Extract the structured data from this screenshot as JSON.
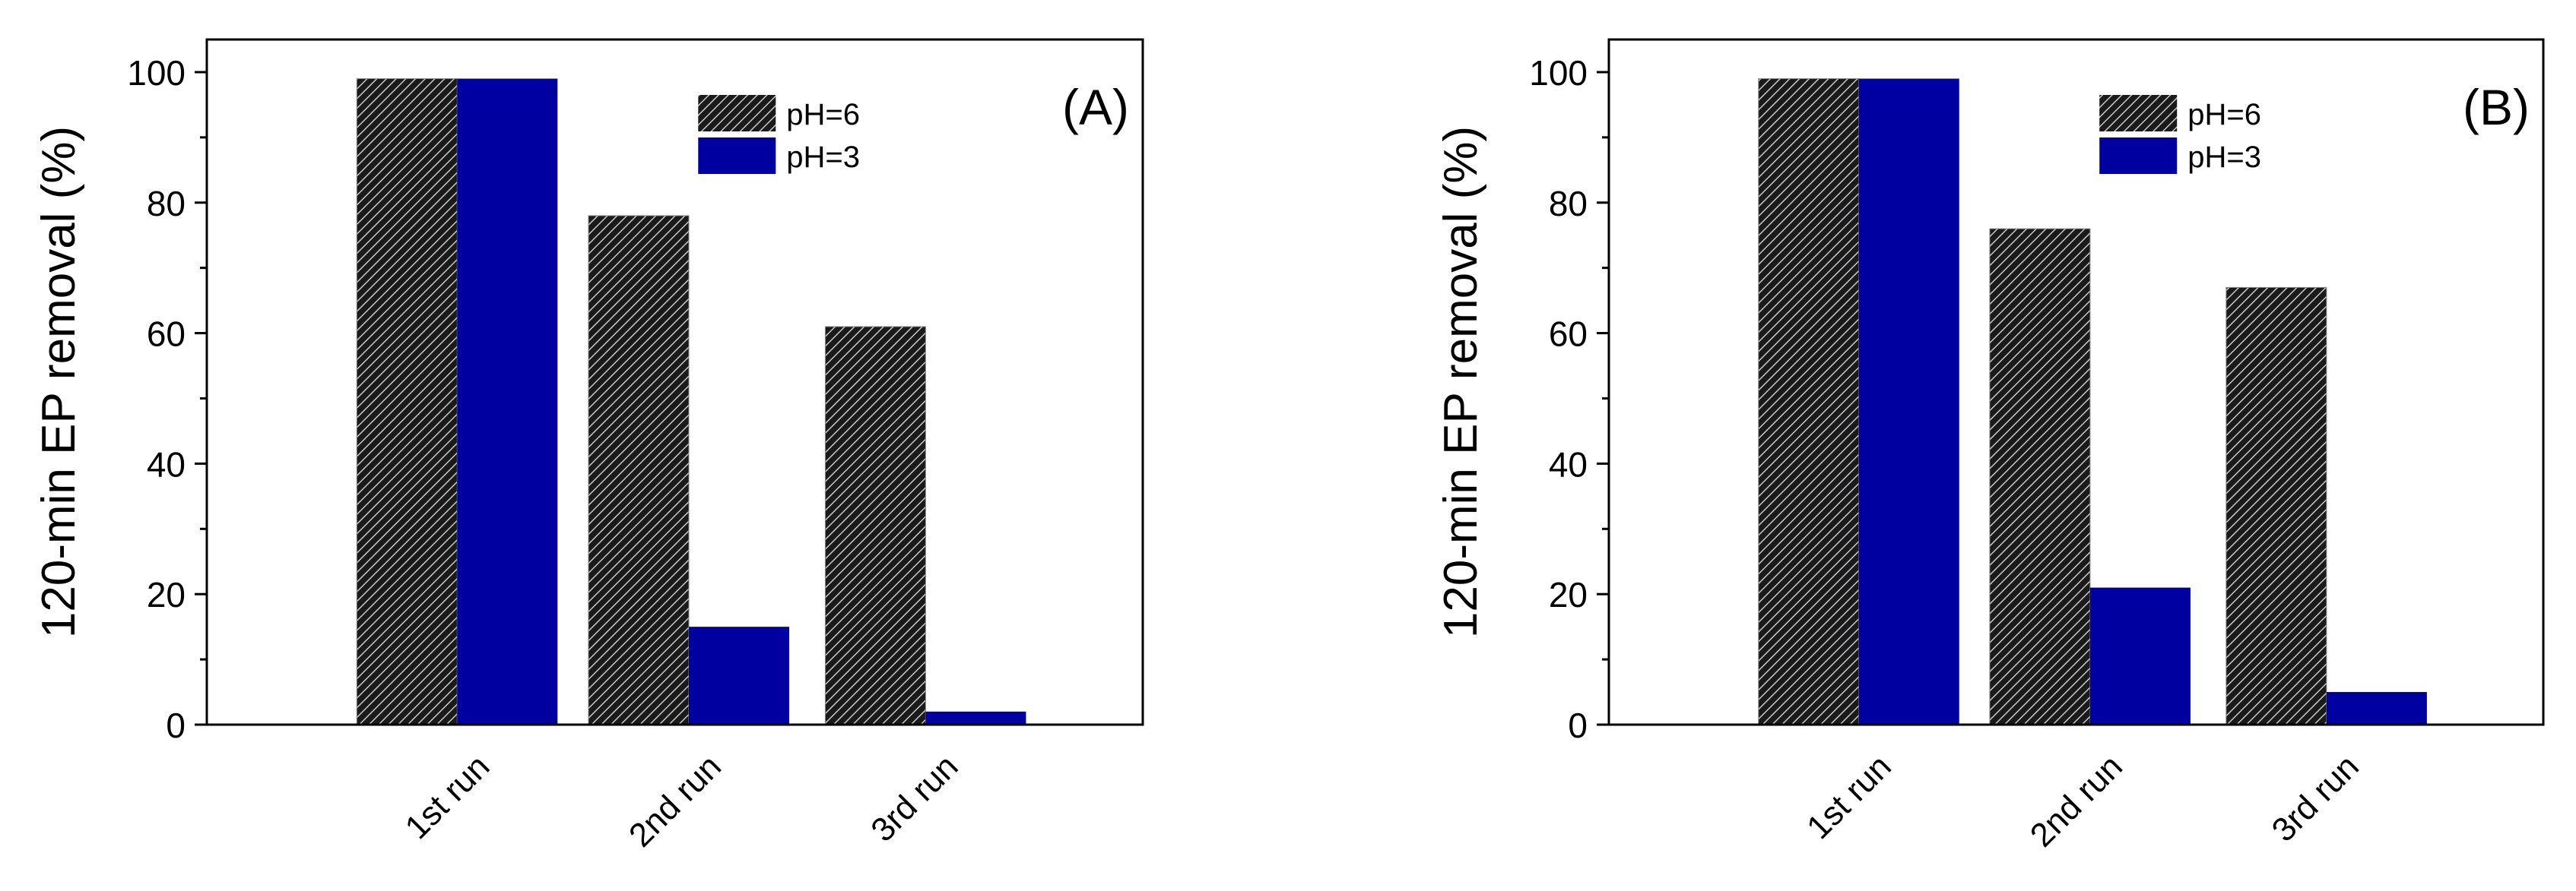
{
  "colors": {
    "pH6_fill": "#1a1a1a",
    "pH6_hatch": "#c8c8c8",
    "pH3_fill": "#0000a0",
    "axis": "#000000"
  },
  "chart_data": [
    {
      "type": "bar",
      "panel_label": "(A)",
      "ylabel": "120-min EP removal (%)",
      "xlabel": "",
      "categories": [
        "1st run",
        "2nd run",
        "3rd run"
      ],
      "ylim": [
        0,
        105
      ],
      "yticks": [
        0,
        20,
        40,
        60,
        80,
        100
      ],
      "series": [
        {
          "name": "pH=6",
          "style": "hatched",
          "values": [
            99,
            78,
            61
          ]
        },
        {
          "name": "pH=3",
          "style": "solid-blue",
          "values": [
            99,
            15,
            2
          ]
        }
      ],
      "legend": "top-right",
      "grid": false
    },
    {
      "type": "bar",
      "panel_label": "(B)",
      "ylabel": "120-min EP removal (%)",
      "xlabel": "",
      "categories": [
        "1st run",
        "2nd run",
        "3rd run"
      ],
      "ylim": [
        0,
        105
      ],
      "yticks": [
        0,
        20,
        40,
        60,
        80,
        100
      ],
      "series": [
        {
          "name": "pH=6",
          "style": "hatched",
          "values": [
            99,
            76,
            67
          ]
        },
        {
          "name": "pH=3",
          "style": "solid-blue",
          "values": [
            99,
            21,
            5
          ]
        }
      ],
      "legend": "top-right",
      "grid": false
    }
  ]
}
